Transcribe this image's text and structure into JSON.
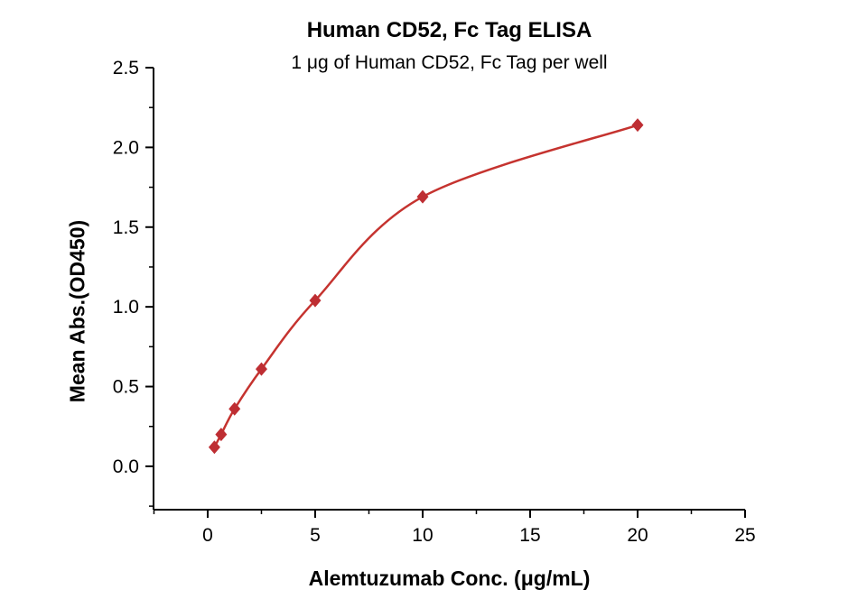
{
  "chart_data": {
    "type": "scatter",
    "title": "Human CD52, Fc Tag ELISA",
    "subtitle": "1 μg of Human CD52, Fc Tag per well",
    "xlabel": "Alemtuzumab Conc. (μg/mL)",
    "ylabel": "Mean Abs.(OD450)",
    "x": [
      0.3125,
      0.625,
      1.25,
      2.5,
      5,
      10,
      20
    ],
    "y": [
      0.12,
      0.2,
      0.36,
      0.61,
      1.04,
      1.69,
      2.14
    ],
    "xlim": [
      -2.52,
      25
    ],
    "ylim": [
      -0.272,
      2.5
    ],
    "xticks": [
      0,
      5,
      10,
      15,
      20,
      25
    ],
    "yticks": [
      0.0,
      0.5,
      1.0,
      1.5,
      2.0,
      2.5
    ],
    "x_minor_step": 2.5,
    "y_minor_step": 0.25,
    "grid": false,
    "legend": "none",
    "marker_shape": "diamond",
    "marker_color": "#be2e33",
    "line_color": "#c5332f",
    "axis_color": "#000000",
    "text_color": "#000000",
    "background_color": "#ffffff"
  }
}
